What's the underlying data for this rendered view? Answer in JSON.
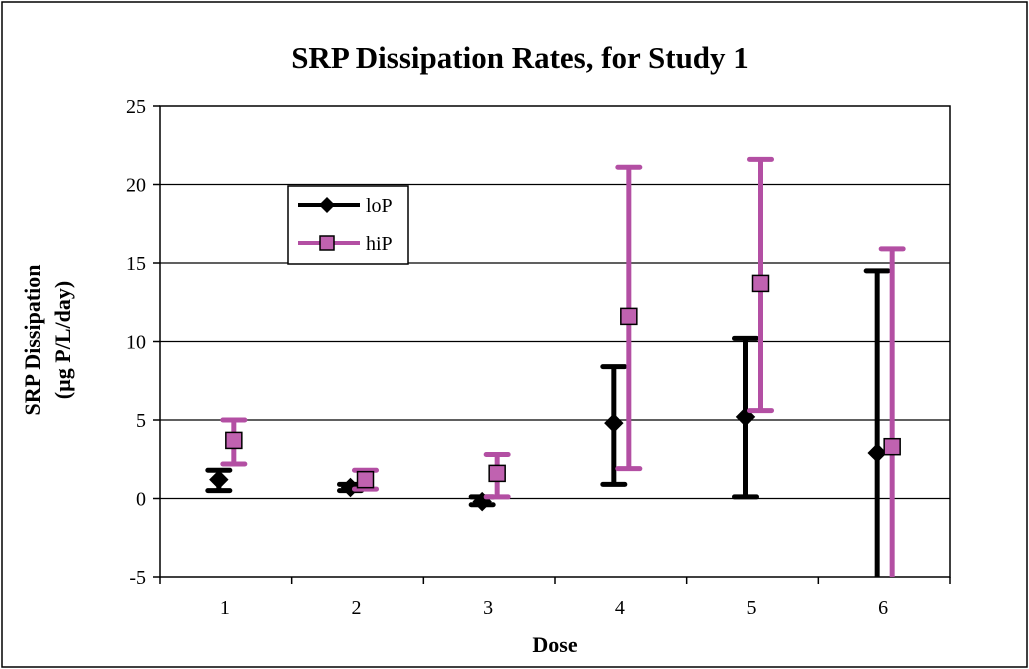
{
  "chart_data": {
    "type": "scatter",
    "title": "SRP Dissipation Rates, for Study 1",
    "xlabel": "Dose",
    "ylabel": [
      "SRP Dissipation",
      "(µg P/L/day)"
    ],
    "ylim": [
      -5,
      25
    ],
    "yticks": [
      -5,
      0,
      5,
      10,
      15,
      20,
      25
    ],
    "categories": [
      "1",
      "2",
      "3",
      "4",
      "5",
      "6"
    ],
    "grid": true,
    "legend_position": "upper-left",
    "series": [
      {
        "name": "loP",
        "marker": "diamond",
        "color": "#000000",
        "values": [
          1.2,
          0.7,
          -0.2,
          4.8,
          5.2,
          2.9
        ],
        "err_low": [
          0.5,
          0.5,
          -0.4,
          0.9,
          0.1,
          -5.0
        ],
        "err_high": [
          1.8,
          0.9,
          0.1,
          8.4,
          10.2,
          14.5
        ]
      },
      {
        "name": "hiP",
        "marker": "square",
        "color": "#b34fa3",
        "fill": "#c062b0",
        "values": [
          3.7,
          1.2,
          1.6,
          11.6,
          13.7,
          3.3
        ],
        "err_low": [
          2.2,
          0.6,
          0.1,
          1.9,
          5.6,
          -5.0
        ],
        "err_high": [
          5.0,
          1.8,
          2.8,
          21.1,
          21.6,
          15.9
        ]
      }
    ]
  }
}
